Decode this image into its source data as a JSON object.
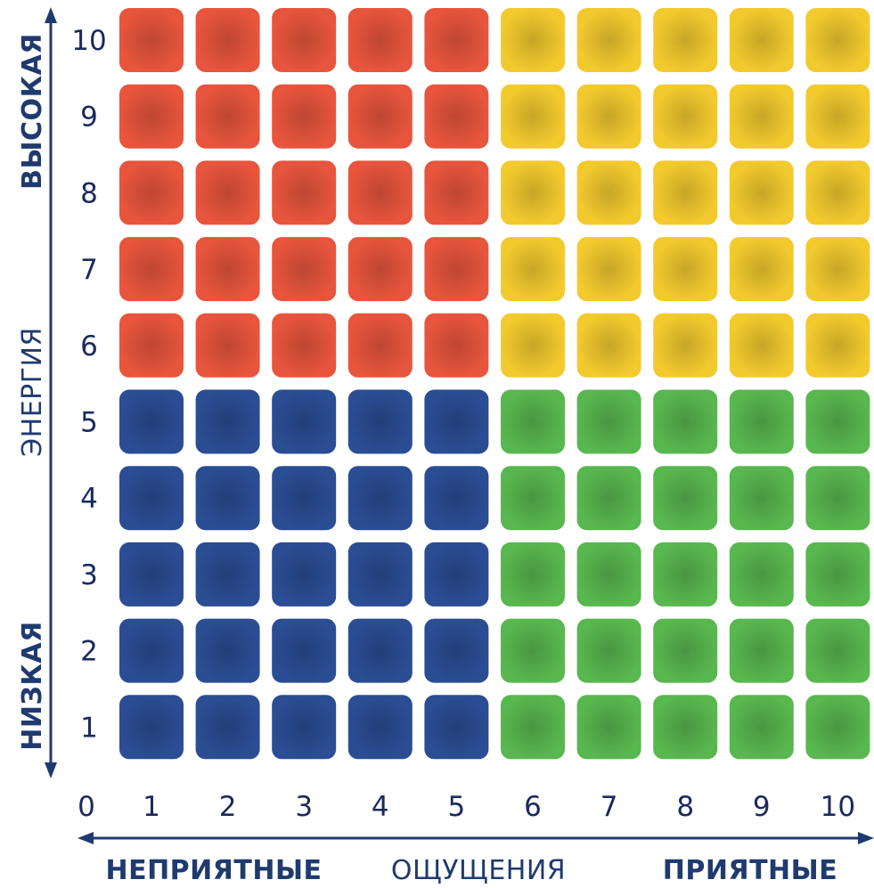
{
  "chart_data": {
    "type": "heatmap",
    "x_ticks": [
      "0",
      "1",
      "2",
      "3",
      "4",
      "5",
      "6",
      "7",
      "8",
      "9",
      "10"
    ],
    "y_ticks": [
      "1",
      "2",
      "3",
      "4",
      "5",
      "6",
      "7",
      "8",
      "9",
      "10"
    ],
    "xlim": [
      0,
      10
    ],
    "ylim": [
      0,
      10
    ],
    "cells": "10x10 grid, each cell colored by quadrant",
    "quadrants": [
      {
        "x_range": [
          1,
          5
        ],
        "y_range": [
          6,
          10
        ],
        "color": "#e8553d"
      },
      {
        "x_range": [
          6,
          10
        ],
        "y_range": [
          6,
          10
        ],
        "color": "#f3ca2e"
      },
      {
        "x_range": [
          1,
          5
        ],
        "y_range": [
          1,
          5
        ],
        "color": "#2b4d94"
      },
      {
        "x_range": [
          6,
          10
        ],
        "y_range": [
          1,
          5
        ],
        "color": "#59b74f"
      }
    ],
    "y_axis": {
      "label": "ЭНЕРГИЯ",
      "high_label": "ВЫСОКАЯ",
      "low_label": "НИЗКАЯ"
    },
    "x_axis": {
      "label": "ОЩУЩЕНИЯ",
      "left_label": "НЕПРИЯТНЫЕ",
      "right_label": "ПРИЯТНЫЕ"
    },
    "axis_color": "#1f3a6e",
    "text_color": "#1a2a5c"
  }
}
